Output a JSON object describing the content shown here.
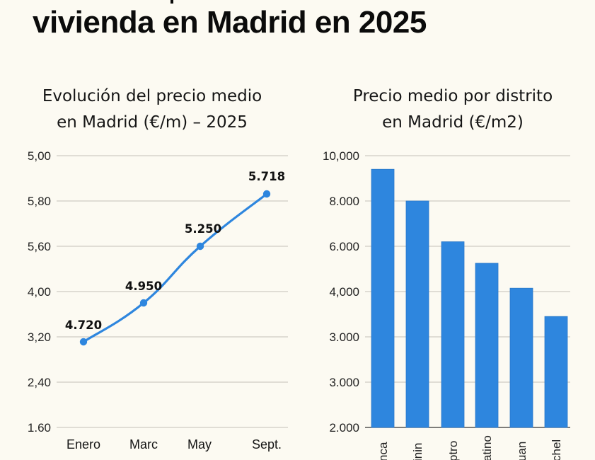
{
  "page": {
    "title_line": "vivienda en Madrid en 2025"
  },
  "colors": {
    "background": "#fcfaf2",
    "series": "#2e86de",
    "grid": "#cfccc4"
  },
  "chart_data": [
    {
      "type": "line",
      "title": "Evolución del precio medio\nen Madrid (€/m) – 2025",
      "title_lines": [
        "Evolución del precio medio",
        "en Madrid (€/m) – 2025"
      ],
      "xlabel": "",
      "ylabel": "",
      "categories": [
        "Enero",
        "Marc",
        "May",
        "Sept."
      ],
      "series": [
        {
          "name": "Precio medio",
          "values": [
            4720,
            4950,
            5250,
            5718
          ]
        }
      ],
      "data_labels": [
        "4.720",
        "4.950",
        "5.250",
        "5.718"
      ],
      "y_tick_labels": [
        "5,00",
        "5,80",
        "5,60",
        "4,00",
        "3,20",
        "2,40",
        "1.60"
      ],
      "grid": true,
      "legend": "none",
      "smooth": true
    },
    {
      "type": "bar",
      "title": "Precio medio por distrito\nen Madrid (€/m2)",
      "title_lines": [
        "Precio medio por distrito",
        "en Madrid (€/m2)"
      ],
      "xlabel": "",
      "ylabel": "",
      "categories": [
        "nca",
        "inin",
        "ptro",
        "atino",
        "uan",
        "chel"
      ],
      "values": [
        9400,
        8000,
        6200,
        5250,
        4150,
        2900
      ],
      "y_tick_labels": [
        "10,000",
        "8.000",
        "6.000",
        "4,000",
        "3.000",
        "3.000",
        "2.000"
      ],
      "ylim": [
        -2000,
        10000
      ],
      "grid": true,
      "legend": "none"
    }
  ]
}
